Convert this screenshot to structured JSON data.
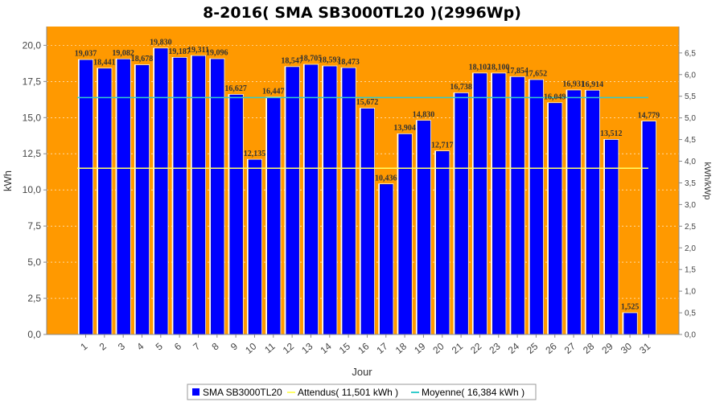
{
  "chart_data": {
    "type": "bar",
    "title": "8-2016( SMA SB3000TL20 )(2996Wp)",
    "xlabel": "Jour",
    "ylabel": "kWh",
    "ylabel_right": "kWh/kWp",
    "ylim": [
      0,
      21.3
    ],
    "yticks": [
      "0,0",
      "2,5",
      "5,0",
      "7,5",
      "10,0",
      "12,5",
      "15,0",
      "17,5",
      "20,0"
    ],
    "yticks_right": [
      "0,0",
      "0,5",
      "1,0",
      "1,5",
      "2,0",
      "2,5",
      "3,0",
      "3,5",
      "4,0",
      "4,5",
      "5,0",
      "5,5",
      "6,0",
      "6,5"
    ],
    "grid": true,
    "legend_position": "bottom",
    "colors": {
      "plot_bg": "#ff9900",
      "bar": "#0000ff",
      "bar_edge": "#000088",
      "attendus": "#ffff66",
      "moyenne": "#33cccc"
    },
    "categories": [
      "1",
      "2",
      "3",
      "4",
      "5",
      "6",
      "7",
      "8",
      "9",
      "10",
      "11",
      "12",
      "13",
      "14",
      "15",
      "16",
      "17",
      "18",
      "19",
      "20",
      "21",
      "22",
      "23",
      "24",
      "25",
      "26",
      "27",
      "28",
      "29",
      "30",
      "31"
    ],
    "series": [
      {
        "name": "SMA SB3000TL20",
        "values": [
          19.037,
          18.441,
          19.082,
          18.678,
          19.83,
          19.187,
          19.311,
          19.096,
          16.627,
          12.135,
          16.447,
          18.547,
          18.705,
          18.593,
          18.473,
          15.672,
          10.436,
          13.904,
          14.83,
          12.717,
          16.738,
          18.102,
          18.1,
          17.854,
          17.652,
          16.049,
          16.931,
          16.914,
          13.512,
          1.525,
          14.779
        ],
        "labels": [
          "19,037",
          "18,441",
          "19,082",
          "18,678",
          "19,830",
          "19,187",
          "19,311",
          "19,096",
          "16,627",
          "12,135",
          "16,447",
          "18,547",
          "18,705",
          "18,593",
          "18,473",
          "15,672",
          "10,436",
          "13,904",
          "14,830",
          "12,717",
          "16,738",
          "18,102",
          "18,100",
          "17,854",
          "17,652",
          "16,049",
          "16,931",
          "16,914",
          "13,512",
          "1,525",
          "14,779"
        ]
      }
    ],
    "reference_lines": [
      {
        "name": "Attendus",
        "value": 11.501,
        "legend": "Attendus( 11,501 kWh )"
      },
      {
        "name": "Moyenne",
        "value": 16.384,
        "legend": "Moyenne( 16,384 kWh )"
      }
    ],
    "legend_bar": "SMA SB3000TL20"
  }
}
